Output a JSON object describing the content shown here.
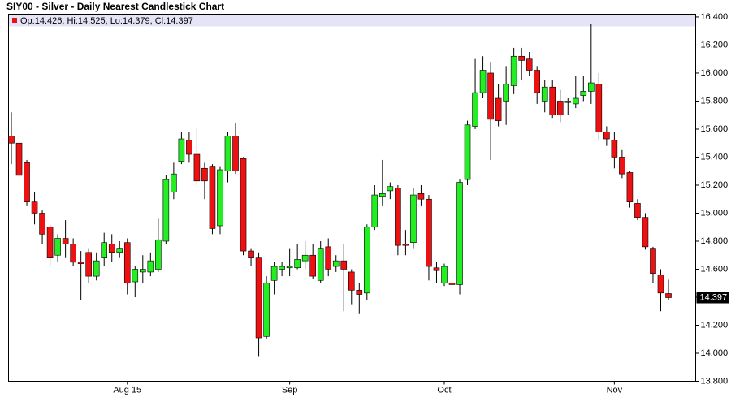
{
  "chart_data": {
    "type": "candlestick",
    "title": "SIY00 - Silver - Daily Nearest Candlestick Chart",
    "legend_text": "Op:14.426, Hi:14.525, Lo:14.379, Cl:14.397",
    "up_color": "#22ee22",
    "down_color": "#ee1111",
    "categories": [
      null,
      null,
      null,
      null,
      null,
      null,
      null,
      null,
      null,
      null,
      null,
      null,
      null,
      null,
      null,
      "Aug 15",
      null,
      null,
      null,
      null,
      null,
      null,
      null,
      null,
      null,
      null,
      null,
      null,
      null,
      null,
      null,
      null,
      null,
      null,
      null,
      null,
      "Sep",
      null,
      null,
      null,
      null,
      null,
      null,
      null,
      null,
      null,
      null,
      null,
      null,
      null,
      null,
      null,
      null,
      null,
      null,
      null,
      "Oct",
      null,
      null,
      null,
      null,
      null,
      null,
      null,
      null,
      null,
      null,
      null,
      null,
      null,
      null,
      null,
      null,
      null,
      null,
      null,
      null,
      null,
      "Nov",
      null,
      null,
      null,
      null,
      null,
      null,
      null
    ],
    "open": [
      15.55,
      15.5,
      15.36,
      15.08,
      15.0,
      14.9,
      14.7,
      14.82,
      14.78,
      14.65,
      14.72,
      14.55,
      14.68,
      14.78,
      14.72,
      14.79,
      14.51,
      14.58,
      14.58,
      14.6,
      14.8,
      15.15,
      15.37,
      15.52,
      15.42,
      15.32,
      15.33,
      14.91,
      15.3,
      15.55,
      15.39,
      14.73,
      14.68,
      14.12,
      14.52,
      14.6,
      14.61,
      14.61,
      14.66,
      14.7,
      14.52,
      14.76,
      14.62,
      14.66,
      14.58,
      14.45,
      14.43,
      14.9,
      15.12,
      15.16,
      15.18,
      14.78,
      14.79,
      15.14,
      15.1,
      14.61,
      14.5,
      14.5,
      14.49,
      15.24,
      15.62,
      15.86,
      16.0,
      15.82,
      15.8,
      15.91,
      16.12,
      16.1,
      16.02,
      15.8,
      15.9,
      15.8,
      15.79,
      15.78,
      15.84,
      15.87,
      15.92,
      15.58,
      15.52,
      15.4,
      15.29,
      15.07,
      14.97,
      14.75,
      14.56,
      14.426
    ],
    "high": [
      15.72,
      15.52,
      15.38,
      15.15,
      15.02,
      14.92,
      14.85,
      14.95,
      14.82,
      14.73,
      14.75,
      14.72,
      14.86,
      14.85,
      14.8,
      14.82,
      14.62,
      14.7,
      14.72,
      14.96,
      15.27,
      15.36,
      15.58,
      15.58,
      15.61,
      15.36,
      15.35,
      15.33,
      15.58,
      15.64,
      15.4,
      14.75,
      14.72,
      14.55,
      14.65,
      14.65,
      14.75,
      14.78,
      14.8,
      14.78,
      14.8,
      14.82,
      14.7,
      14.78,
      14.6,
      14.5,
      14.92,
      15.2,
      15.38,
      15.22,
      15.2,
      14.88,
      15.18,
      15.2,
      15.13,
      14.65,
      14.64,
      14.52,
      15.24,
      15.66,
      16.1,
      16.12,
      16.08,
      15.92,
      16.05,
      16.18,
      16.18,
      16.15,
      16.05,
      15.95,
      15.95,
      15.88,
      15.82,
      15.98,
      15.98,
      16.35,
      16.0,
      15.62,
      15.58,
      15.45,
      15.3,
      15.1,
      15.0,
      14.76,
      14.6,
      14.525
    ],
    "low": [
      15.35,
      15.2,
      15.05,
      14.92,
      14.78,
      14.62,
      14.65,
      14.68,
      14.62,
      14.38,
      14.5,
      14.52,
      14.62,
      14.65,
      14.68,
      14.42,
      14.4,
      14.5,
      14.55,
      14.58,
      14.78,
      15.1,
      15.35,
      15.36,
      15.2,
      15.1,
      14.85,
      14.85,
      15.22,
      15.28,
      14.7,
      14.62,
      13.98,
      14.1,
      14.42,
      14.55,
      14.55,
      14.6,
      14.6,
      14.53,
      14.5,
      14.55,
      14.58,
      14.3,
      14.35,
      14.28,
      14.38,
      14.88,
      15.05,
      15.1,
      14.7,
      14.7,
      14.75,
      15.05,
      14.52,
      14.5,
      14.48,
      14.46,
      14.42,
      15.2,
      15.6,
      15.82,
      15.38,
      15.62,
      15.63,
      15.85,
      15.95,
      15.98,
      15.78,
      15.72,
      15.68,
      15.65,
      15.7,
      15.75,
      15.8,
      15.78,
      15.52,
      15.48,
      15.32,
      15.25,
      15.04,
      14.95,
      14.74,
      14.5,
      14.3,
      14.379
    ],
    "close": [
      15.5,
      15.27,
      15.08,
      15.0,
      14.85,
      14.68,
      14.82,
      14.78,
      14.65,
      14.64,
      14.55,
      14.66,
      14.79,
      14.72,
      14.75,
      14.5,
      14.6,
      14.6,
      14.66,
      14.81,
      15.24,
      15.28,
      15.53,
      15.42,
      15.23,
      15.23,
      14.89,
      15.31,
      15.55,
      15.3,
      14.73,
      14.68,
      14.11,
      14.5,
      14.62,
      14.62,
      14.62,
      14.67,
      14.7,
      14.55,
      14.75,
      14.6,
      14.66,
      14.6,
      14.45,
      14.42,
      14.9,
      15.13,
      15.14,
      15.19,
      14.77,
      14.77,
      15.13,
      15.1,
      14.62,
      14.59,
      14.62,
      14.49,
      15.22,
      15.63,
      15.86,
      16.02,
      15.67,
      15.66,
      15.92,
      16.12,
      16.09,
      16.02,
      15.86,
      15.9,
      15.7,
      15.7,
      15.8,
      15.82,
      15.87,
      15.93,
      15.58,
      15.53,
      15.4,
      15.28,
      15.08,
      14.97,
      14.76,
      14.57,
      14.43,
      14.397
    ],
    "ylim": [
      13.8,
      16.42
    ],
    "yticks": [
      {
        "value": 13.8,
        "label": "13.800"
      },
      {
        "value": 14.0,
        "label": "14.000"
      },
      {
        "value": 14.2,
        "label": "14.200"
      },
      {
        "value": 14.4,
        "label": "14.400"
      },
      {
        "value": 14.6,
        "label": "14.600"
      },
      {
        "value": 14.8,
        "label": "14.800"
      },
      {
        "value": 15.0,
        "label": "15.000"
      },
      {
        "value": 15.2,
        "label": "15.200"
      },
      {
        "value": 15.4,
        "label": "15.400"
      },
      {
        "value": 15.6,
        "label": "15.600"
      },
      {
        "value": 15.8,
        "label": "15.800"
      },
      {
        "value": 16.0,
        "label": "16.000"
      },
      {
        "value": 16.2,
        "label": "16.200"
      },
      {
        "value": 16.4,
        "label": "16.400"
      }
    ],
    "grid": false
  }
}
